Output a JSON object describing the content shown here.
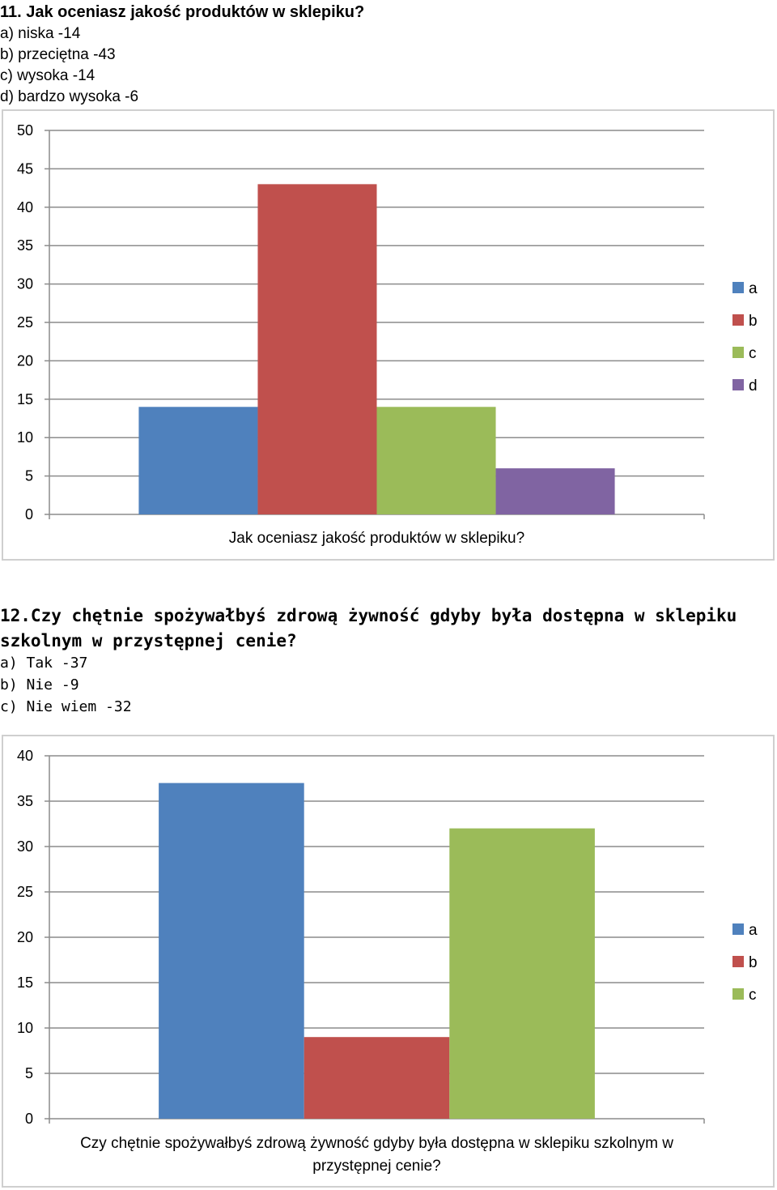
{
  "question1": {
    "title": "11. Jak oceniasz jakość produktów w sklepiku?",
    "options": [
      "a) niska -14",
      "b) przeciętna -43",
      "c) wysoka -14",
      "d) bardzo wysoka -6"
    ]
  },
  "question2": {
    "title_line1": "12.Czy chętnie spożywałbyś zdrową żywność gdyby była dostępna w sklepiku",
    "title_line2": "szkolnym w przystępnej cenie?",
    "options": [
      "a) Tak -37",
      "b) Nie -9",
      "c) Nie wiem -32"
    ]
  },
  "chart_data": [
    {
      "type": "bar",
      "categories": [
        "Jak oceniasz jakość produktów w sklepiku?"
      ],
      "xlabel_lines": [
        "Jak oceniasz jakość produktów w sklepiku?"
      ],
      "series": [
        {
          "name": "a",
          "values": [
            14
          ],
          "color": "#4f81bd"
        },
        {
          "name": "b",
          "values": [
            43
          ],
          "color": "#c0504d"
        },
        {
          "name": "c",
          "values": [
            14
          ],
          "color": "#9bbb59"
        },
        {
          "name": "d",
          "values": [
            6
          ],
          "color": "#8064a2"
        }
      ],
      "ylim": [
        0,
        50
      ],
      "yticks": [
        0,
        5,
        10,
        15,
        20,
        25,
        30,
        35,
        40,
        45,
        50
      ],
      "grid": true,
      "legend": "right"
    },
    {
      "type": "bar",
      "categories": [
        "Czy chętnie spożywałbyś zdrową żywność gdyby była dostępna w sklepiku szkolnym w przystępnej cenie?"
      ],
      "xlabel_lines": [
        "Czy chętnie spożywałbyś zdrową żywność gdyby była dostępna w sklepiku szkolnym w",
        "przystępnej cenie?"
      ],
      "series": [
        {
          "name": "a",
          "values": [
            37
          ],
          "color": "#4f81bd"
        },
        {
          "name": "b",
          "values": [
            9
          ],
          "color": "#c0504d"
        },
        {
          "name": "c",
          "values": [
            32
          ],
          "color": "#9bbb59"
        }
      ],
      "ylim": [
        0,
        40
      ],
      "yticks": [
        0,
        5,
        10,
        15,
        20,
        25,
        30,
        35,
        40
      ],
      "grid": true,
      "legend": "right"
    }
  ]
}
